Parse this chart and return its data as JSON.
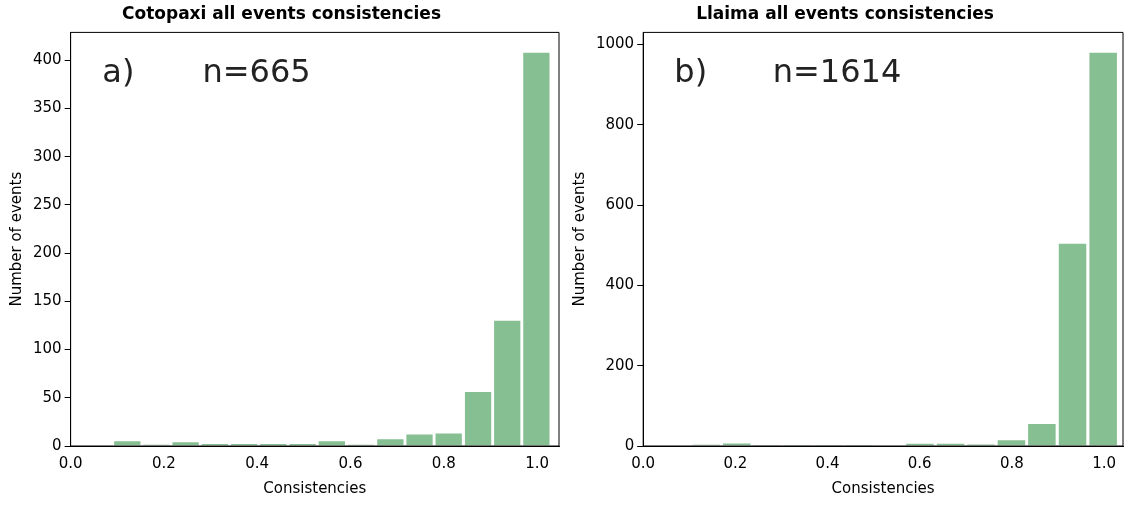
{
  "chart_data": [
    {
      "type": "histogram",
      "title": "Cotopaxi all events consistencies",
      "xlabel": "Consistencies",
      "ylabel": "Number of events",
      "annotations": [
        "a)",
        "n=665"
      ],
      "bins": [
        0.09,
        0.153,
        0.215,
        0.278,
        0.341,
        0.403,
        0.466,
        0.529,
        0.591,
        0.654,
        0.717,
        0.779,
        0.842,
        0.905,
        0.967,
        1.03
      ],
      "values": [
        6,
        2,
        5,
        3,
        3,
        3,
        3,
        6,
        2,
        8,
        13,
        14,
        57,
        131,
        409
      ],
      "color": "#86bf91",
      "xlim": [
        0,
        1.047
      ],
      "xticks": [
        {
          "value": 0,
          "label": "0.0"
        },
        {
          "value": 0.2,
          "label": "0.2"
        },
        {
          "value": 0.4,
          "label": "0.4"
        },
        {
          "value": 0.6,
          "label": "0.6"
        },
        {
          "value": 0.8,
          "label": "0.8"
        },
        {
          "value": 1,
          "label": "1.0"
        }
      ],
      "ylim": [
        0,
        429
      ],
      "yticks": [
        0,
        50,
        100,
        150,
        200,
        250,
        300,
        350,
        400
      ],
      "grid": false
    },
    {
      "type": "histogram",
      "title": "Llaima all events consistencies",
      "xlabel": "Consistencies",
      "ylabel": "Number of events",
      "annotations": [
        "b)",
        "n=1614"
      ],
      "bins": [
        0.104,
        0.17,
        0.236,
        0.302,
        0.369,
        0.435,
        0.501,
        0.567,
        0.634,
        0.7,
        0.766,
        0.832,
        0.898,
        0.965,
        1.031
      ],
      "values": [
        5,
        9,
        4,
        4,
        4,
        4,
        0,
        8,
        8,
        6,
        17,
        57,
        506,
        982
      ],
      "color": "#86bf91",
      "xlim": [
        0,
        1.041
      ],
      "xticks": [
        {
          "value": 0,
          "label": "0.0"
        },
        {
          "value": 0.2,
          "label": "0.2"
        },
        {
          "value": 0.4,
          "label": "0.4"
        },
        {
          "value": 0.6,
          "label": "0.6"
        },
        {
          "value": 0.8,
          "label": "0.8"
        },
        {
          "value": 1,
          "label": "1.0"
        }
      ],
      "ylim": [
        0,
        1030
      ],
      "yticks": [
        0,
        200,
        400,
        600,
        800,
        1000
      ],
      "grid": false
    }
  ]
}
